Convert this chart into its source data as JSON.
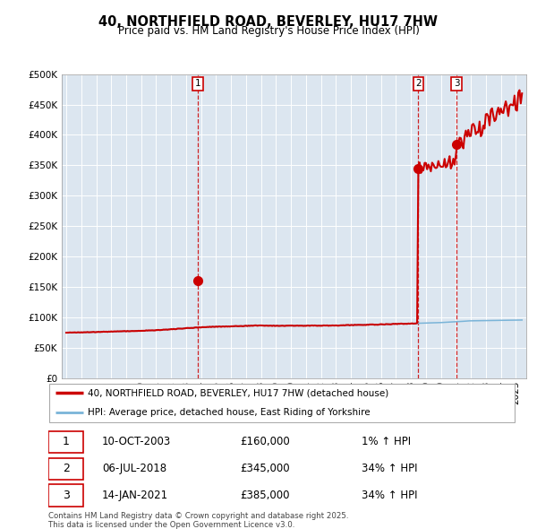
{
  "title": "40, NORTHFIELD ROAD, BEVERLEY, HU17 7HW",
  "subtitle": "Price paid vs. HM Land Registry's House Price Index (HPI)",
  "background_color": "#dce6f0",
  "plot_bg_color": "#dce6f0",
  "hpi_color": "#7ab4d8",
  "price_color": "#cc0000",
  "ylim": [
    0,
    500000
  ],
  "yticks": [
    0,
    50000,
    100000,
    150000,
    200000,
    250000,
    300000,
    350000,
    400000,
    450000,
    500000
  ],
  "legend_line1": "40, NORTHFIELD ROAD, BEVERLEY, HU17 7HW (detached house)",
  "legend_line2": "HPI: Average price, detached house, East Riding of Yorkshire",
  "footer": "Contains HM Land Registry data © Crown copyright and database right 2025.\nThis data is licensed under the Open Government Licence v3.0.",
  "table_rows": [
    [
      "1",
      "10-OCT-2003",
      "£160,000",
      "1% ↑ HPI"
    ],
    [
      "2",
      "06-JUL-2018",
      "£345,000",
      "34% ↑ HPI"
    ],
    [
      "3",
      "14-JAN-2021",
      "£385,000",
      "34% ↑ HPI"
    ]
  ],
  "transactions": [
    {
      "num": 1,
      "year": 2003.79,
      "price": 160000
    },
    {
      "num": 2,
      "year": 2018.5,
      "price": 345000
    },
    {
      "num": 3,
      "year": 2021.04,
      "price": 385000
    }
  ]
}
